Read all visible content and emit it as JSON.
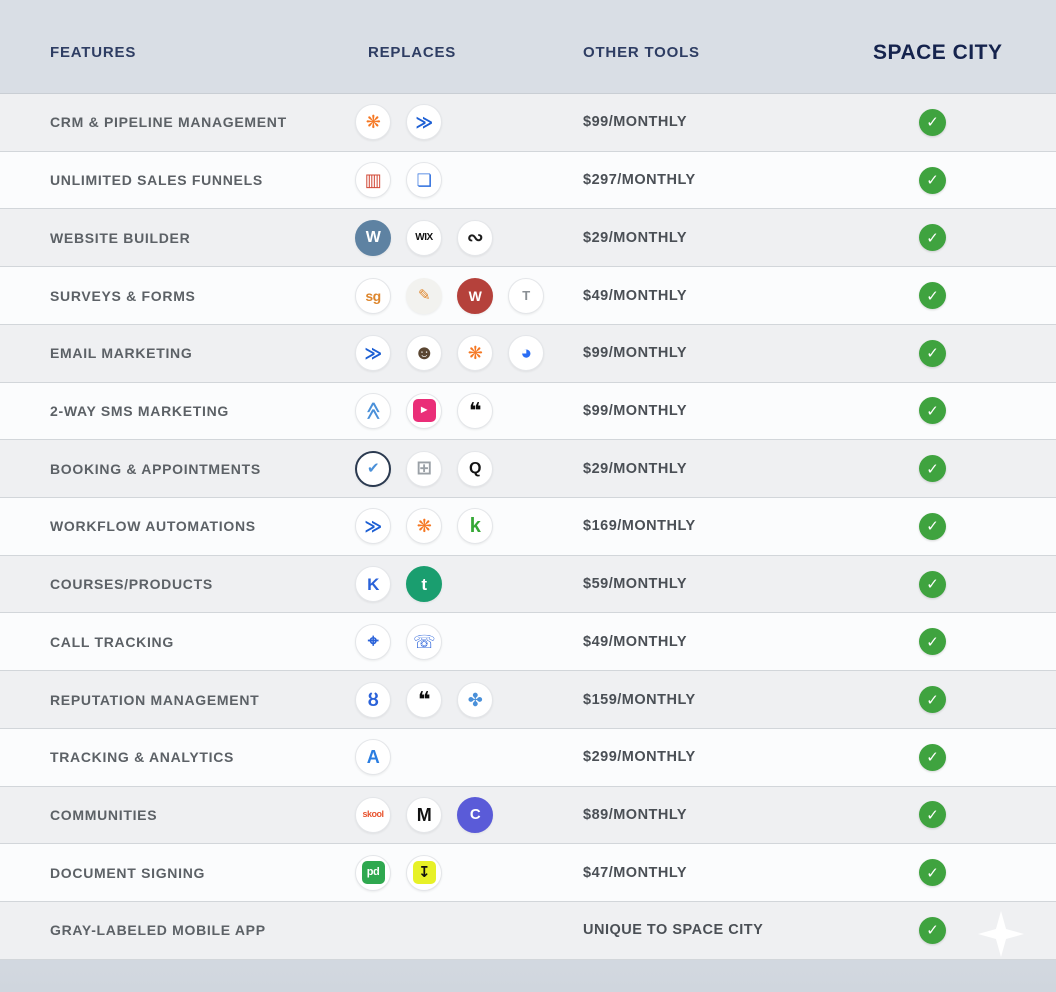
{
  "page": {
    "background": "#d9dee5",
    "accent_green": "#3fa33f",
    "header_text_color": "#2e3d63",
    "brand_header_color": "#15234d",
    "check_glyph": "✓"
  },
  "header": {
    "features": "FEATURES",
    "replaces": "REPLACES",
    "other_tools": "OTHER TOOLS",
    "space_city": "SPACE CITY"
  },
  "rows": [
    {
      "feature": "CRM & PIPELINE MANAGEMENT",
      "price": "$99/MONTHLY",
      "icons": [
        {
          "name": "hubspot-icon",
          "glyph": "❋",
          "fg": "#f57722",
          "shape": "circle",
          "size": 18
        },
        {
          "name": "activecampaign-icon",
          "glyph": "≫",
          "fg": "#1c5fd4",
          "shape": "circle",
          "size": 17
        }
      ]
    },
    {
      "feature": "UNLIMITED SALES FUNNELS",
      "price": "$297/MONTHLY",
      "icons": [
        {
          "name": "clickfunnels-icon",
          "glyph": "▥",
          "fg": "#d14836",
          "shape": "circle",
          "size": 18
        },
        {
          "name": "leadpages-icon",
          "glyph": "❏",
          "fg": "#2f6fde",
          "shape": "circle",
          "size": 17
        }
      ]
    },
    {
      "feature": "WEBSITE BUILDER",
      "price": "$29/MONTHLY",
      "icons": [
        {
          "name": "wordpress-icon",
          "glyph": "W",
          "fg": "#ffffff",
          "bg": "#5e82a2",
          "shape": "fill",
          "size": 16
        },
        {
          "name": "wix-icon",
          "glyph": "WIX",
          "fg": "#111111",
          "shape": "circle",
          "size": 10
        },
        {
          "name": "squarespace-icon",
          "glyph": "∾",
          "fg": "#1d1d1d",
          "shape": "circle",
          "size": 20
        }
      ]
    },
    {
      "feature": "SURVEYS & FORMS",
      "price": "$49/MONTHLY",
      "icons": [
        {
          "name": "surveygizmo-icon",
          "glyph": "sg",
          "fg": "#dd862d",
          "shape": "circle",
          "size": 14
        },
        {
          "name": "form-pencil-icon",
          "glyph": "✎",
          "fg": "#e0862c",
          "bg": "#f2f2ef",
          "shape": "fill",
          "size": 15
        },
        {
          "name": "wufoo-icon",
          "glyph": "W",
          "fg": "#ffffff",
          "bg": "#b5413b",
          "shape": "fill",
          "size": 14
        },
        {
          "name": "typeform-icon",
          "glyph": "T",
          "fg": "#8a8f94",
          "shape": "circle",
          "size": 13
        }
      ]
    },
    {
      "feature": "EMAIL MARKETING",
      "price": "$99/MONTHLY",
      "icons": [
        {
          "name": "activecampaign-icon",
          "glyph": "≫",
          "fg": "#1c5fd4",
          "shape": "circle",
          "size": 17
        },
        {
          "name": "mailchimp-icon",
          "glyph": "☻",
          "fg": "#5a4632",
          "shape": "circle",
          "size": 20
        },
        {
          "name": "hubspot-icon",
          "glyph": "❋",
          "fg": "#f57722",
          "shape": "circle",
          "size": 18
        },
        {
          "name": "constantcontact-icon",
          "glyph": "◕",
          "fg": "#2a6df4",
          "shape": "circle",
          "size": 19
        }
      ]
    },
    {
      "feature": "2-WAY SMS MARKETING",
      "price": "$99/MONTHLY",
      "icons": [
        {
          "name": "chevrons-up-icon",
          "glyph": "≫",
          "fg": "#4a90d9",
          "shape": "circle",
          "size": 18,
          "rot": -90
        },
        {
          "name": "simpletexting-icon",
          "glyph": "►",
          "fg": "#ffffff",
          "bg": "#ea2e78",
          "shape": "rsq",
          "size": 11
        },
        {
          "name": "podium-icon",
          "glyph": "❝",
          "fg": "#0d0d0d",
          "shape": "circle",
          "size": 22
        }
      ]
    },
    {
      "feature": "BOOKING & APPOINTMENTS",
      "price": "$29/MONTHLY",
      "icons": [
        {
          "name": "calendly-icon",
          "glyph": "✔",
          "fg": "#4a90d9",
          "shape": "ring",
          "size": 15
        },
        {
          "name": "calendar-icon",
          "glyph": "⊞",
          "fg": "#9aa0a6",
          "shape": "circle",
          "size": 19
        },
        {
          "name": "acuity-icon",
          "glyph": "Q",
          "fg": "#141414",
          "shape": "circle",
          "size": 16
        }
      ]
    },
    {
      "feature": "WORKFLOW AUTOMATIONS",
      "price": "$169/MONTHLY",
      "icons": [
        {
          "name": "activecampaign-icon",
          "glyph": "≫",
          "fg": "#1c5fd4",
          "shape": "circle",
          "size": 17
        },
        {
          "name": "hubspot-icon",
          "glyph": "❋",
          "fg": "#f57722",
          "shape": "circle",
          "size": 18
        },
        {
          "name": "keap-icon",
          "glyph": "k",
          "fg": "#35a835",
          "shape": "circle",
          "size": 20
        }
      ]
    },
    {
      "feature": "COURSES/PRODUCTS",
      "price": "$59/MONTHLY",
      "icons": [
        {
          "name": "kajabi-icon",
          "glyph": "K",
          "fg": "#2a62d9",
          "shape": "circle",
          "size": 17
        },
        {
          "name": "teachable-icon",
          "glyph": "t",
          "fg": "#ffffff",
          "bg": "#1a9e6f",
          "shape": "fill",
          "size": 17
        }
      ]
    },
    {
      "feature": "CALL TRACKING",
      "price": "$49/MONTHLY",
      "icons": [
        {
          "name": "map-pin-icon",
          "glyph": "⌖",
          "fg": "#2a62d9",
          "shape": "circle",
          "size": 19
        },
        {
          "name": "phone-dial-icon",
          "glyph": "☏",
          "fg": "#2a62d9",
          "shape": "circle",
          "size": 18
        }
      ]
    },
    {
      "feature": "REPUTATION MANAGEMENT",
      "price": "$159/MONTHLY",
      "icons": [
        {
          "name": "birdeye-icon",
          "glyph": "ȣ",
          "fg": "#2a62d9",
          "shape": "circle",
          "size": 18
        },
        {
          "name": "podium-icon",
          "glyph": "❝",
          "fg": "#0d0d0d",
          "shape": "circle",
          "size": 22
        },
        {
          "name": "reputation-icon",
          "glyph": "✤",
          "fg": "#4a90d9",
          "shape": "circle",
          "size": 18
        }
      ]
    },
    {
      "feature": "TRACKING & ANALYTICS",
      "price": "$299/MONTHLY",
      "icons": [
        {
          "name": "agencyanalytics-icon",
          "glyph": "A",
          "fg": "#2a7de1",
          "shape": "circle",
          "size": 18
        }
      ]
    },
    {
      "feature": "COMMUNITIES",
      "price": "$89/MONTHLY",
      "icons": [
        {
          "name": "skool-icon",
          "glyph": "skool",
          "fg": "#e8542f",
          "shape": "circle",
          "size": 9
        },
        {
          "name": "mightynetworks-icon",
          "glyph": "M",
          "fg": "#111111",
          "shape": "circle",
          "size": 18
        },
        {
          "name": "circle-icon",
          "glyph": "C",
          "fg": "#ffffff",
          "bg": "#5a5bd8",
          "shape": "fill",
          "size": 15
        }
      ]
    },
    {
      "feature": "DOCUMENT SIGNING",
      "price": "$47/MONTHLY",
      "icons": [
        {
          "name": "pandadoc-icon",
          "glyph": "pd",
          "fg": "#ffffff",
          "bg": "#2fa84f",
          "shape": "rsq",
          "size": 11
        },
        {
          "name": "download-icon",
          "glyph": "↧",
          "fg": "#111111",
          "bg": "#e7f127",
          "shape": "rsq",
          "size": 15
        }
      ]
    },
    {
      "feature": "GRAY-LABELED MOBILE APP",
      "price": "UNIQUE TO SPACE CITY",
      "icons": [],
      "sparkle": true
    }
  ]
}
